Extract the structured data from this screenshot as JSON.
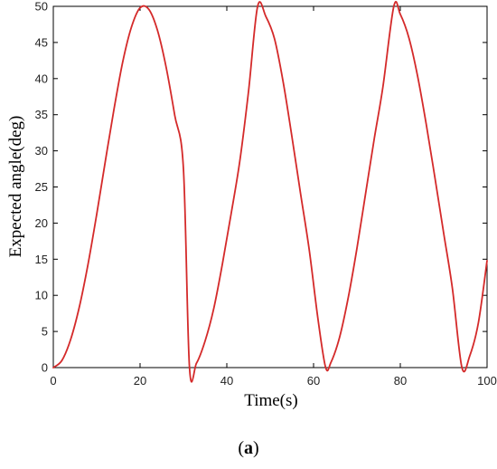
{
  "chart_data": {
    "type": "line",
    "xlabel": "Time(s)",
    "ylabel": "Expected angle(deg)",
    "xlim": [
      0,
      100
    ],
    "ylim": [
      0,
      50
    ],
    "xticks": [
      0,
      20,
      40,
      60,
      80,
      100
    ],
    "yticks": [
      0,
      5,
      10,
      15,
      20,
      25,
      30,
      35,
      40,
      45,
      50
    ],
    "grid": false,
    "series": [
      {
        "color": "#d42a2a",
        "x": [
          0,
          2,
          4,
          6,
          8,
          10,
          12,
          14,
          16,
          18,
          20,
          22,
          24,
          26,
          28,
          30,
          31.4,
          33,
          35,
          37,
          39,
          41,
          43,
          45,
          47.1,
          49,
          51,
          53,
          55,
          57,
          59,
          61,
          62.8,
          64,
          66,
          68,
          70,
          72,
          74,
          76,
          78.5,
          80,
          82,
          84,
          86,
          88,
          90,
          92,
          94.2,
          96,
          98,
          100
        ],
        "y": [
          0,
          1.0,
          3.9,
          8.4,
          14.3,
          21.2,
          28.6,
          35.8,
          42.3,
          47.1,
          49.8,
          49.6,
          46.7,
          41.6,
          34.9,
          27.5,
          0,
          0.6,
          3.7,
          8.2,
          14.4,
          21.3,
          28.6,
          38.2,
          50,
          48.6,
          45.5,
          39.5,
          32.0,
          24.1,
          16.3,
          6.8,
          0,
          0.7,
          4.2,
          9.7,
          16.5,
          24.1,
          31.7,
          38.9,
          50,
          48.9,
          45.6,
          40.3,
          33.6,
          26.2,
          18.6,
          11.0,
          0,
          1.6,
          6.2,
          14.8
        ]
      }
    ]
  },
  "caption": {
    "open": "(",
    "letter": "a",
    "close": ")"
  }
}
